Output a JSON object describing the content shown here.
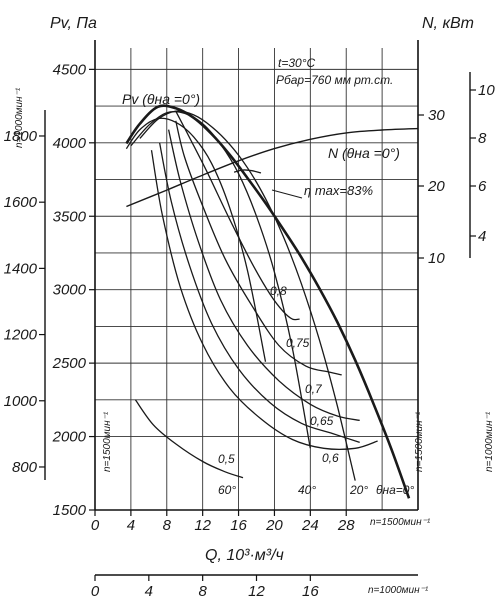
{
  "chart_data": {
    "type": "line",
    "title": "",
    "conditions": [
      "t=30°C",
      "Pбар=760 мм рт.ст."
    ],
    "xlabel": "Q, 10³·м³/ч",
    "ylabel_pressure": "Pv, Па",
    "ylabel_power": "N, кВт",
    "grid": true,
    "x_axis_1500": {
      "label": "n=1500мин⁻¹",
      "range": [
        0,
        36
      ],
      "ticks": [
        "0",
        "4",
        "8",
        "12",
        "16",
        "20",
        "24",
        "28"
      ]
    },
    "x_axis_1000": {
      "label": "n=1000мин⁻¹",
      "range": [
        0,
        24
      ],
      "ticks": [
        "0",
        "4",
        "8",
        "12",
        "16"
      ]
    },
    "y_pressure_1500": {
      "label": "n=1500мин⁻¹",
      "range": [
        1500,
        4700
      ],
      "ticks": [
        "1500",
        "2000",
        "2500",
        "3000",
        "3500",
        "4000",
        "4500"
      ]
    },
    "y_pressure_1000": {
      "label": "n=1000мин⁻¹",
      "range": [
        670,
        2090
      ],
      "ticks": [
        "800",
        "1000",
        "1200",
        "1400",
        "1600",
        "1800"
      ]
    },
    "y_power_1500": {
      "label": "n=1500мин⁻¹",
      "ticks": [
        "10",
        "20",
        "30"
      ]
    },
    "y_power_1000": {
      "label": "n=1000мин⁻¹",
      "ticks": [
        "4",
        "6",
        "8",
        "10"
      ]
    },
    "curve_labels": {
      "pv": "Pv (θна =0°)",
      "power": "N (θна =0°)",
      "eta_max": "η max=83%"
    },
    "efficiency_levels": [
      "0,8",
      "0,75",
      "0,7",
      "0,65",
      "0,6",
      "0,5"
    ],
    "blade_angles": [
      "60°",
      "40°",
      "20°",
      "θна=0°"
    ],
    "series": [
      {
        "name": "Pv (θна =0°)",
        "x": [
          3.5,
          5.0,
          7.0,
          9.0,
          11.0,
          13.0,
          15.0,
          17.0,
          19.0,
          21.0,
          23.0,
          25.0,
          27.0,
          29.0,
          31.0,
          33.0,
          35.0
        ],
        "y": [
          3995,
          4130,
          4245,
          4235,
          4170,
          4060,
          3920,
          3760,
          3590,
          3410,
          3220,
          3010,
          2780,
          2520,
          2230,
          1920,
          1580
        ]
      },
      {
        "name": "N (θна =0°)",
        "x": [
          3.5,
          8,
          12,
          16,
          20,
          24,
          28,
          32,
          36
        ],
        "y": [
          17.2,
          19.5,
          21.6,
          23.6,
          25.3,
          26.6,
          27.5,
          27.9,
          28.1
        ]
      },
      {
        "name": "60°",
        "x": [
          3.5,
          5,
          7,
          9,
          11,
          13,
          15,
          17,
          19
        ],
        "y": [
          3960,
          4090,
          4165,
          4140,
          4040,
          3860,
          3560,
          3130,
          2510
        ]
      },
      {
        "name": "40°",
        "x": [
          4,
          6,
          8,
          10,
          12,
          14,
          16,
          18,
          20,
          22,
          24
        ],
        "y": [
          3980,
          4120,
          4205,
          4200,
          4130,
          3990,
          3790,
          3500,
          3120,
          2600,
          1920
        ]
      },
      {
        "name": "20°",
        "x": [
          5,
          7,
          9,
          11,
          13,
          15,
          17,
          19,
          21,
          23,
          25,
          27,
          29
        ],
        "y": [
          4030,
          4160,
          4215,
          4190,
          4110,
          3990,
          3830,
          3620,
          3360,
          3040,
          2660,
          2210,
          1700
        ]
      },
      {
        "name": "0,8",
        "x": [
          9.0,
          10.5,
          12.5,
          15.0,
          17.5,
          19.5,
          21.0,
          22.0,
          22.8
        ],
        "y": [
          4215,
          4040,
          3800,
          3480,
          3180,
          2970,
          2850,
          2800,
          2800
        ]
      },
      {
        "name": "0,75",
        "x": [
          9.0,
          10.0,
          12.0,
          14.5,
          17.5,
          20.5,
          23.5,
          26.0,
          27.5
        ],
        "y": [
          4150,
          3900,
          3570,
          3210,
          2890,
          2620,
          2480,
          2440,
          2420
        ]
      },
      {
        "name": "0,7",
        "x": [
          8.2,
          9.5,
          11.5,
          14.0,
          17.0,
          20.5,
          24.0,
          27.0,
          29.5
        ],
        "y": [
          4090,
          3740,
          3330,
          2930,
          2620,
          2380,
          2220,
          2140,
          2110
        ]
      },
      {
        "name": "0,65",
        "x": [
          7.2,
          8.5,
          10.5,
          13.0,
          16.0,
          19.5,
          23.0,
          26.5,
          29.5
        ],
        "y": [
          4000,
          3600,
          3170,
          2770,
          2460,
          2230,
          2090,
          2020,
          1960
        ]
      },
      {
        "name": "0,6",
        "x": [
          6.3,
          7.5,
          9.5,
          12.0,
          15.0,
          18.5,
          22.0,
          25.5,
          29.0,
          31.5
        ],
        "y": [
          3950,
          3510,
          3020,
          2630,
          2330,
          2120,
          1980,
          1920,
          1920,
          1970
        ]
      },
      {
        "name": "0,5",
        "x": [
          4.5,
          6.5,
          9.0,
          12.0,
          14.5,
          16.5
        ],
        "y": [
          2250,
          2080,
          1950,
          1830,
          1760,
          1720
        ]
      },
      {
        "name": "η max=83%",
        "x": [
          15.5,
          16.5,
          17.5,
          18.5
        ],
        "y": [
          3800,
          3815,
          3810,
          3795
        ]
      }
    ]
  }
}
